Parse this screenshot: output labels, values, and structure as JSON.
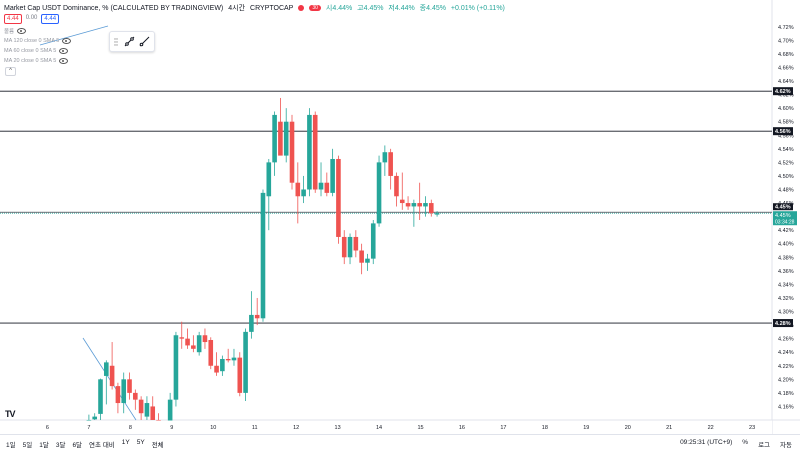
{
  "header": {
    "title": "Market Cap USDT Dominance, % (CALCULATED BY TRADINGVIEW)",
    "interval": "4시간",
    "exchange": "CRYPTOCAP",
    "badge": "30",
    "ohlc": {
      "open": "시4.44%",
      "high": "고4.45%",
      "low": "저4.44%",
      "close": "종4.45%",
      "change": "+0.01% (+0.11%)"
    }
  },
  "quote": {
    "sell": "4.44",
    "spread": "0.00",
    "buy": "4.44"
  },
  "indicators": [
    {
      "label": "볼륨"
    },
    {
      "label": "MA 120 close 0 SMA 5"
    },
    {
      "label": "MA 60 close 0 SMA 5"
    },
    {
      "label": "MA 20 close 0 SMA 5"
    }
  ],
  "footer": {
    "ranges": [
      "1일",
      "5일",
      "1달",
      "3달",
      "6달",
      "연초 대비",
      "1Y",
      "5Y",
      "전체"
    ],
    "time": "09:25:31 (UTC+9)",
    "controls": [
      "%",
      "로그",
      "자동"
    ]
  },
  "logo": "TV",
  "colors": {
    "up": "#26a69a",
    "down": "#ef5350",
    "line": "#131722",
    "price": "#26a69a",
    "trend": "#5b9bd5"
  },
  "chart_data": {
    "type": "candlestick",
    "x_labels": [
      "6",
      "7",
      "8",
      "9",
      "10",
      "11",
      "12",
      "13",
      "14",
      "15",
      "16",
      "17",
      "18",
      "19",
      "20",
      "21",
      "22",
      "23"
    ],
    "y_range": [
      4.14,
      4.73
    ],
    "y_ticks": [
      "4.72%",
      "4.70%",
      "4.68%",
      "4.66%",
      "4.64%",
      "4.62%",
      "4.60%",
      "4.58%",
      "4.56%",
      "4.54%",
      "4.52%",
      "4.50%",
      "4.48%",
      "4.46%",
      "4.44%",
      "4.42%",
      "4.40%",
      "4.38%",
      "4.36%",
      "4.34%",
      "4.32%",
      "4.30%",
      "4.28%",
      "4.26%",
      "4.24%",
      "4.22%",
      "4.20%",
      "4.18%",
      "4.16%"
    ],
    "horizontal_levels": [
      {
        "value": 4.625,
        "label": "4.62%"
      },
      {
        "value": 4.566,
        "label": "4.56%"
      },
      {
        "value": 4.283,
        "label": "4.28%"
      }
    ],
    "current_price": {
      "value": 4.445,
      "label": "4.45%",
      "countdown": "03:34:28"
    },
    "prev_close_label": "4.45%",
    "candles": [
      [
        7.0,
        4.135,
        4.148,
        4.13,
        4.14
      ],
      [
        7.14,
        4.141,
        4.15,
        4.14,
        4.145
      ],
      [
        7.28,
        4.149,
        4.201,
        4.138,
        4.2
      ],
      [
        7.42,
        4.205,
        4.228,
        4.163,
        4.225
      ],
      [
        7.56,
        4.22,
        4.255,
        4.185,
        4.19
      ],
      [
        7.7,
        4.19,
        4.195,
        4.15,
        4.165
      ],
      [
        7.84,
        4.165,
        4.21,
        4.15,
        4.2
      ],
      [
        7.98,
        4.2,
        4.21,
        4.17,
        4.18
      ],
      [
        8.12,
        4.18,
        4.185,
        4.155,
        4.17
      ],
      [
        8.26,
        4.17,
        4.175,
        4.12,
        4.15
      ],
      [
        8.4,
        4.145,
        4.175,
        4.12,
        4.165
      ],
      [
        8.54,
        4.16,
        4.175,
        4.13,
        4.14
      ],
      [
        8.68,
        4.14,
        4.15,
        4.11,
        4.125
      ],
      [
        8.82,
        4.12,
        4.14,
        4.1,
        4.13
      ],
      [
        8.96,
        4.135,
        4.18,
        4.13,
        4.17
      ],
      [
        9.1,
        4.17,
        4.27,
        4.16,
        4.265
      ],
      [
        9.24,
        4.262,
        4.285,
        4.245,
        4.26
      ],
      [
        9.38,
        4.26,
        4.275,
        4.245,
        4.25
      ],
      [
        9.52,
        4.25,
        4.265,
        4.24,
        4.245
      ],
      [
        9.66,
        4.24,
        4.27,
        4.235,
        4.265
      ],
      [
        9.8,
        4.265,
        4.275,
        4.245,
        4.255
      ],
      [
        9.94,
        4.258,
        4.262,
        4.215,
        4.22
      ],
      [
        10.08,
        4.22,
        4.24,
        4.205,
        4.21
      ],
      [
        10.22,
        4.212,
        4.235,
        4.205,
        4.23
      ],
      [
        10.36,
        4.23,
        4.245,
        4.225,
        4.228
      ],
      [
        10.5,
        4.228,
        4.245,
        4.22,
        4.232
      ],
      [
        10.64,
        4.232,
        4.24,
        4.175,
        4.18
      ],
      [
        10.78,
        4.18,
        4.275,
        4.168,
        4.27
      ],
      [
        10.92,
        4.27,
        4.33,
        4.26,
        4.295
      ],
      [
        11.06,
        4.295,
        4.32,
        4.28,
        4.29
      ],
      [
        11.2,
        4.29,
        4.48,
        4.285,
        4.475
      ],
      [
        11.34,
        4.47,
        4.525,
        4.42,
        4.52
      ],
      [
        11.48,
        4.52,
        4.595,
        4.5,
        4.59
      ],
      [
        11.62,
        4.58,
        4.615,
        4.535,
        4.53
      ],
      [
        11.76,
        4.53,
        4.6,
        4.52,
        4.58
      ],
      [
        11.9,
        4.58,
        4.59,
        4.48,
        4.49
      ],
      [
        12.04,
        4.49,
        4.52,
        4.43,
        4.47
      ],
      [
        12.18,
        4.47,
        4.5,
        4.46,
        4.48
      ],
      [
        12.32,
        4.48,
        4.6,
        4.47,
        4.59
      ],
      [
        12.46,
        4.59,
        4.595,
        4.475,
        4.48
      ],
      [
        12.6,
        4.48,
        4.52,
        4.47,
        4.49
      ],
      [
        12.74,
        4.49,
        4.505,
        4.47,
        4.475
      ],
      [
        12.88,
        4.475,
        4.54,
        4.47,
        4.525
      ],
      [
        13.02,
        4.525,
        4.53,
        4.4,
        4.41
      ],
      [
        13.16,
        4.41,
        4.42,
        4.37,
        4.38
      ],
      [
        13.3,
        4.38,
        4.415,
        4.37,
        4.41
      ],
      [
        13.44,
        4.41,
        4.42,
        4.38,
        4.39
      ],
      [
        13.58,
        4.39,
        4.4,
        4.355,
        4.372
      ],
      [
        13.72,
        4.372,
        4.385,
        4.36,
        4.378
      ],
      [
        13.86,
        4.378,
        4.435,
        4.37,
        4.43
      ],
      [
        14.0,
        4.43,
        4.53,
        4.425,
        4.52
      ],
      [
        14.14,
        4.52,
        4.545,
        4.5,
        4.535
      ],
      [
        14.28,
        4.535,
        4.54,
        4.48,
        4.5
      ],
      [
        14.42,
        4.5,
        4.505,
        4.455,
        4.47
      ],
      [
        14.56,
        4.465,
        4.505,
        4.45,
        4.46
      ],
      [
        14.7,
        4.46,
        4.47,
        4.45,
        4.455
      ],
      [
        14.84,
        4.455,
        4.465,
        4.425,
        4.46
      ],
      [
        14.98,
        4.46,
        4.49,
        4.435,
        4.455
      ],
      [
        15.12,
        4.455,
        4.47,
        4.44,
        4.46
      ],
      [
        15.26,
        4.46,
        4.465,
        4.44,
        4.445
      ],
      [
        15.4,
        4.443,
        4.448,
        4.44,
        4.445
      ]
    ]
  }
}
